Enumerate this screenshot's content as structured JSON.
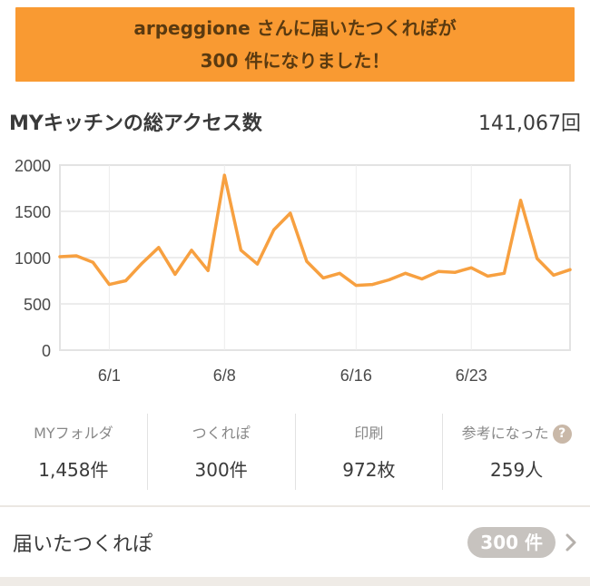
{
  "banner": {
    "line1": "arpeggione さんに届いたつくれぽが",
    "line2": "300 件になりました！"
  },
  "access": {
    "title": "MYキッチンの総アクセス数",
    "total": "141,067回"
  },
  "chart_data": {
    "type": "line",
    "color": "#f7a040",
    "ylim": [
      0,
      2000
    ],
    "yticks": [
      "2000",
      "1500",
      "1000",
      "500",
      "0"
    ],
    "xticks": [
      {
        "label": "6/1",
        "index": 3
      },
      {
        "label": "6/8",
        "index": 10
      },
      {
        "label": "6/16",
        "index": 18
      },
      {
        "label": "6/23",
        "index": 25
      }
    ],
    "values": [
      1010,
      1020,
      950,
      710,
      750,
      940,
      1110,
      820,
      1080,
      860,
      1890,
      1080,
      930,
      1300,
      1480,
      960,
      780,
      830,
      700,
      710,
      760,
      830,
      770,
      850,
      840,
      890,
      800,
      830,
      1620,
      990,
      810,
      870
    ],
    "grid": true
  },
  "stats": [
    {
      "label": "MYフォルダ",
      "value": "1,458件"
    },
    {
      "label": "つくれぽ",
      "value": "300件"
    },
    {
      "label": "印刷",
      "value": "972枚"
    },
    {
      "label": "参考になった",
      "value": "259人"
    }
  ],
  "received": {
    "label": "届いたつくれぽ",
    "count": "300 件"
  },
  "icons": {
    "help": "help-icon",
    "chevron": "chevron-right-icon"
  }
}
